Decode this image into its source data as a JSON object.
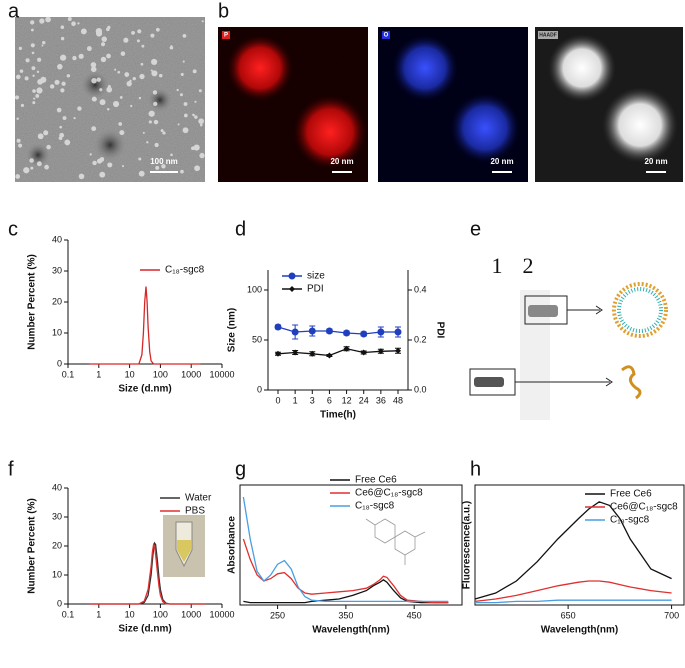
{
  "panel_labels": [
    "a",
    "b",
    "c",
    "d",
    "e",
    "f",
    "g",
    "h"
  ],
  "images": {
    "a_scale": "100 nm",
    "b_tags": [
      "P",
      "O",
      "HAADF"
    ],
    "b_scales": [
      "20 nm",
      "20 nm",
      "20 nm"
    ]
  },
  "gel": {
    "lanes": [
      "1",
      "2"
    ]
  },
  "chart_data": [
    {
      "type": "line",
      "xlabel": "Size (d.nm)",
      "ylabel": "Number Percent (%)",
      "xscale": "log",
      "xlim": [
        0.1,
        10000
      ],
      "xticks": [
        0.1,
        1,
        10,
        100,
        1000,
        10000
      ],
      "ylim": [
        0,
        40
      ],
      "yticks": [
        0,
        10,
        20,
        30,
        40
      ],
      "x": [
        0.5,
        10,
        20,
        25,
        28,
        31,
        34,
        37,
        40,
        45,
        50,
        60,
        80,
        2000
      ],
      "series": [
        {
          "name": "C₁₈-sgc8",
          "color": "#d62728",
          "values": [
            0,
            0,
            0,
            3,
            10,
            20,
            25,
            20,
            12,
            4,
            1,
            0,
            0,
            0
          ]
        }
      ]
    },
    {
      "type": "line",
      "xlabel": "Time(h)",
      "ylabel": "Size (nm)",
      "y2label": "PDI",
      "categories": [
        "0",
        "1",
        "3",
        "6",
        "12",
        "24",
        "36",
        "48"
      ],
      "ylim": [
        0,
        120
      ],
      "yticks": [
        0,
        50,
        100
      ],
      "y2lim": [
        0,
        0.48
      ],
      "y2ticks": [
        {
          "value": 0,
          "label": "0.0"
        },
        {
          "value": 0.2,
          "label": "0.2"
        },
        {
          "value": 0.4,
          "label": "0.4"
        }
      ],
      "series": [
        {
          "name": "size",
          "color": "#1f3fbf",
          "marker": "circle",
          "values": [
            63,
            58,
            59,
            59,
            57,
            56,
            58,
            58
          ],
          "errors": [
            2,
            7,
            5,
            2,
            2,
            2,
            5,
            5
          ]
        },
        {
          "name": "PDI",
          "color": "#111111",
          "marker": "diamond",
          "axis": "y2",
          "values": [
            0.145,
            0.15,
            0.145,
            0.138,
            0.165,
            0.15,
            0.155,
            0.157
          ],
          "errors": [
            0.006,
            0.008,
            0.008,
            0.004,
            0.008,
            0.006,
            0.008,
            0.01
          ]
        }
      ]
    },
    {
      "type": "line",
      "xlabel": "Size (d.nm)",
      "ylabel": "Number Percent (%)",
      "xscale": "log",
      "xlim": [
        0.1,
        10000
      ],
      "xticks": [
        0.1,
        1,
        10,
        100,
        1000,
        10000
      ],
      "ylim": [
        0,
        40
      ],
      "yticks": [
        0,
        10,
        20,
        30,
        40
      ],
      "x": [
        0.5,
        20,
        30,
        40,
        50,
        55,
        60,
        65,
        70,
        80,
        90,
        100,
        120,
        150,
        200,
        3000
      ],
      "series": [
        {
          "name": "Water",
          "color": "#333333",
          "values": [
            0,
            0,
            0.5,
            3,
            10,
            15,
            19,
            21,
            20.5,
            15,
            9,
            5,
            1.5,
            0.3,
            0,
            0
          ]
        },
        {
          "name": "PBS",
          "color": "#e03030",
          "values": [
            0,
            0,
            1,
            5,
            13,
            18,
            20.5,
            20,
            17,
            11,
            6,
            3,
            0.8,
            0.1,
            0,
            0
          ]
        }
      ]
    },
    {
      "type": "line",
      "xlabel": "Wavelength(nm)",
      "ylabel": "Absorbance",
      "frame": true,
      "xlim": [
        195,
        520
      ],
      "xticks": [
        250,
        350,
        450
      ],
      "ylim": [
        0,
        1
      ],
      "x": [
        200,
        210,
        220,
        230,
        240,
        250,
        260,
        270,
        280,
        290,
        300,
        320,
        340,
        360,
        380,
        390,
        400,
        405,
        410,
        420,
        430,
        440,
        460,
        480,
        500
      ],
      "series": [
        {
          "name": "Free Ce6",
          "color": "#111111",
          "values": [
            0.03,
            0.02,
            0.02,
            0.02,
            0.02,
            0.02,
            0.02,
            0.02,
            0.02,
            0.02,
            0.03,
            0.04,
            0.05,
            0.08,
            0.12,
            0.16,
            0.19,
            0.21,
            0.19,
            0.12,
            0.06,
            0.03,
            0.02,
            0.02,
            0.02
          ]
        },
        {
          "name": "Ce6@C₁₈-sgc8",
          "color": "#e03030",
          "values": [
            0.55,
            0.38,
            0.25,
            0.2,
            0.22,
            0.26,
            0.27,
            0.22,
            0.14,
            0.1,
            0.09,
            0.1,
            0.11,
            0.12,
            0.14,
            0.17,
            0.21,
            0.24,
            0.23,
            0.16,
            0.08,
            0.04,
            0.03,
            0.02,
            0.02
          ]
        },
        {
          "name": "C₁₈-sgc8",
          "color": "#4a9ee0",
          "values": [
            0.9,
            0.55,
            0.28,
            0.2,
            0.25,
            0.34,
            0.37,
            0.3,
            0.15,
            0.07,
            0.04,
            0.03,
            0.03,
            0.03,
            0.03,
            0.03,
            0.03,
            0.03,
            0.03,
            0.03,
            0.03,
            0.03,
            0.03,
            0.03,
            0.03
          ]
        }
      ]
    },
    {
      "type": "line",
      "xlabel": "Wavelength(nm)",
      "ylabel": "Fluorescence(a.u.)",
      "frame": true,
      "xlim": [
        605,
        706
      ],
      "xticks": [
        650,
        700
      ],
      "ylim": [
        0,
        1
      ],
      "x": [
        605,
        615,
        625,
        635,
        645,
        655,
        660,
        665,
        670,
        675,
        680,
        690,
        700
      ],
      "series": [
        {
          "name": "Free Ce6",
          "color": "#111111",
          "values": [
            0.05,
            0.1,
            0.2,
            0.36,
            0.55,
            0.72,
            0.8,
            0.86,
            0.83,
            0.72,
            0.55,
            0.3,
            0.22
          ]
        },
        {
          "name": "Ce6@C₁₈-sgc8",
          "color": "#e03030",
          "values": [
            0.03,
            0.05,
            0.08,
            0.12,
            0.16,
            0.19,
            0.2,
            0.2,
            0.19,
            0.17,
            0.15,
            0.12,
            0.1
          ]
        },
        {
          "name": "C₁₈-sgc8",
          "color": "#4a9ee0",
          "values": [
            0.02,
            0.02,
            0.03,
            0.03,
            0.04,
            0.04,
            0.04,
            0.04,
            0.04,
            0.04,
            0.04,
            0.04,
            0.04
          ]
        }
      ]
    }
  ]
}
